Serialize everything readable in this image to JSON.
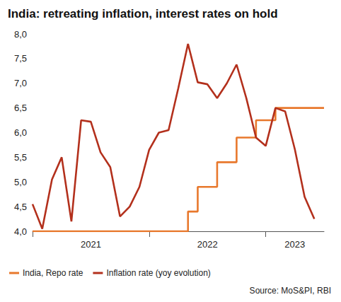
{
  "chart_data": {
    "type": "line",
    "title": "India: retreating inflation, interest rates on hold",
    "source": "Source: MoS&PI, RBI",
    "categories": [
      null,
      null,
      null,
      null,
      null,
      null,
      "2021",
      null,
      null,
      null,
      null,
      null,
      null,
      null,
      null,
      null,
      null,
      null,
      "2022",
      null,
      null,
      null,
      null,
      null,
      null,
      null,
      null,
      "2023",
      null,
      null,
      null
    ],
    "series": [
      {
        "name": "India, Repo rate",
        "color": "#e8782c",
        "line_style": "step",
        "values": [
          4.0,
          4.0,
          4.0,
          4.0,
          4.0,
          4.0,
          4.0,
          4.0,
          4.0,
          4.0,
          4.0,
          4.0,
          4.0,
          4.0,
          4.0,
          4.0,
          4.0,
          4.4,
          4.9,
          4.9,
          5.4,
          5.4,
          5.9,
          5.9,
          6.25,
          6.25,
          6.5,
          6.5,
          6.5,
          6.5,
          6.5
        ]
      },
      {
        "name": "Inflation rate (yoy evolution)",
        "color": "#b3301c",
        "line_style": "solid",
        "values": [
          4.55,
          4.05,
          5.05,
          5.5,
          4.2,
          6.25,
          6.22,
          5.6,
          5.3,
          4.3,
          4.5,
          4.9,
          5.65,
          6.0,
          6.05,
          6.9,
          7.8,
          7.02,
          6.98,
          6.7,
          7.0,
          7.38,
          6.7,
          5.9,
          5.73,
          6.5,
          6.43,
          5.66,
          4.7,
          4.25,
          null
        ]
      }
    ],
    "ylim": [
      4,
      8
    ],
    "yticks": [
      {
        "value": 4,
        "label": "4,0"
      },
      {
        "value": 4.5,
        "label": "4,5"
      },
      {
        "value": 5,
        "label": "5,0"
      },
      {
        "value": 5.5,
        "label": "5,5"
      },
      {
        "value": 6,
        "label": "6,0"
      },
      {
        "value": 6.5,
        "label": "6,5"
      },
      {
        "value": 7,
        "label": "7,0"
      },
      {
        "value": 7.5,
        "label": "7,5"
      },
      {
        "value": 8,
        "label": "8,0"
      }
    ],
    "grid": false,
    "legend": "bottom"
  }
}
